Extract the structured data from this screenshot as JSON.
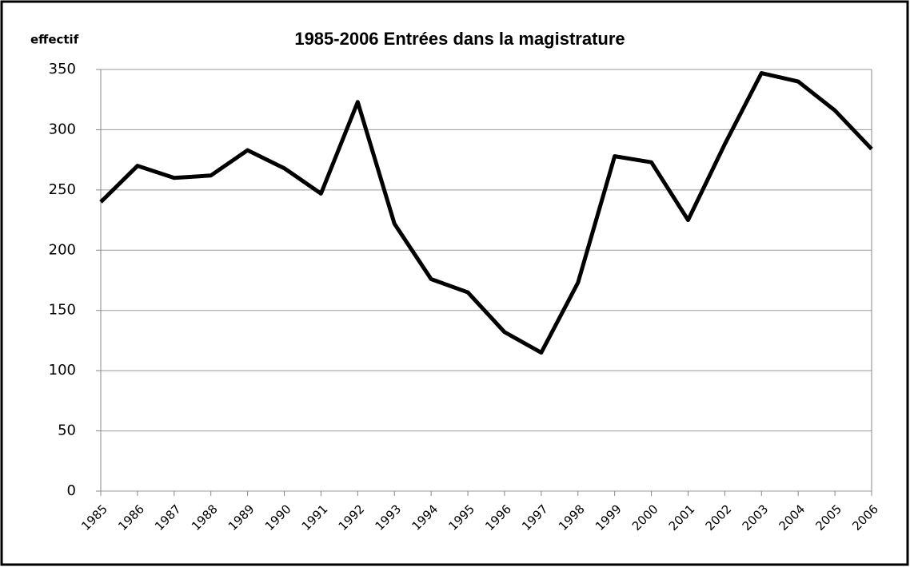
{
  "chart_data": {
    "type": "line",
    "title": "1985-2006 Entrées dans la magistrature",
    "y_label": "effectif",
    "categories": [
      "1985",
      "1986",
      "1987",
      "1988",
      "1989",
      "1990",
      "1991",
      "1992",
      "1993",
      "1994",
      "1995",
      "1996",
      "1997",
      "1998",
      "1999",
      "2000",
      "2001",
      "2002",
      "2003",
      "2004",
      "2005",
      "2006"
    ],
    "values": [
      240,
      270,
      260,
      262,
      283,
      268,
      247,
      323,
      222,
      176,
      165,
      132,
      115,
      173,
      278,
      273,
      225,
      288,
      347,
      340,
      316,
      284
    ],
    "color": "#000000",
    "ylim": [
      0,
      350
    ],
    "yticks": [
      0,
      50,
      100,
      150,
      200,
      250,
      300,
      350
    ],
    "grid": true
  }
}
